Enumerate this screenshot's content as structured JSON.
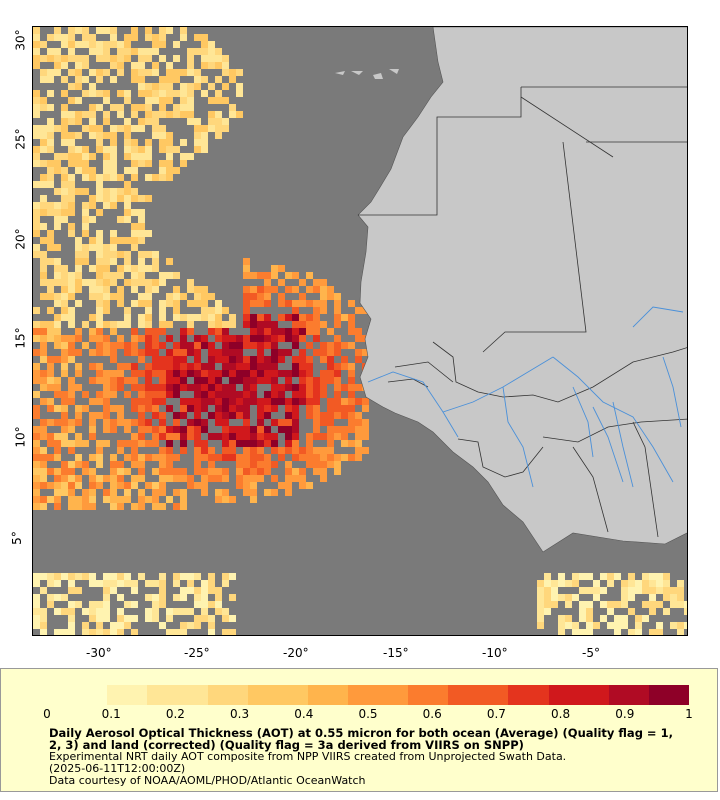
{
  "map": {
    "lon_labels": [
      "-30°",
      "-25°",
      "-20°",
      "-15°",
      "-10°",
      "-5°"
    ],
    "lat_labels": [
      "5°",
      "10°",
      "15°",
      "20°",
      "25°",
      "30°"
    ],
    "extent": {
      "lon_min": -33.3,
      "lon_max": -0.4,
      "lat_min": 1.1,
      "lat_max": 31.7
    },
    "colors": {
      "ocean_missing": "#7a7a7a",
      "land": "#c8c8c8",
      "border": "#333333",
      "river": "#4a90d9"
    }
  },
  "colorbar": {
    "ticks": [
      "0",
      "0.1",
      "0.2",
      "0.3",
      "0.4",
      "0.5",
      "0.6",
      "0.7",
      "0.8",
      "0.9",
      "1"
    ],
    "range": [
      0,
      1
    ],
    "colors": [
      "#ffffcc",
      "#fff3b0",
      "#ffe696",
      "#ffd77c",
      "#ffc862",
      "#ffb44c",
      "#ff9a3c",
      "#fb7c2e",
      "#f25a24",
      "#e4341e",
      "#d0181c",
      "#b00b24",
      "#8e0028"
    ]
  },
  "legend": {
    "title": "Daily Aerosol Optical Thickness (AOT) at 0.55 micron for both ocean (Average) (Quality flag = 1, 2, 3) and land (corrected) (Quality flag = 3a derived from VIIRS on SNPP)",
    "line1": "Experimental NRT daily AOT composite from NPP VIIRS created from Unprojected Swath Data.",
    "line2": "(2025-06-11T12:00:00Z)",
    "line3": "Data courtesy of NOAA/AOML/PHOD/Atlantic OceanWatch"
  }
}
